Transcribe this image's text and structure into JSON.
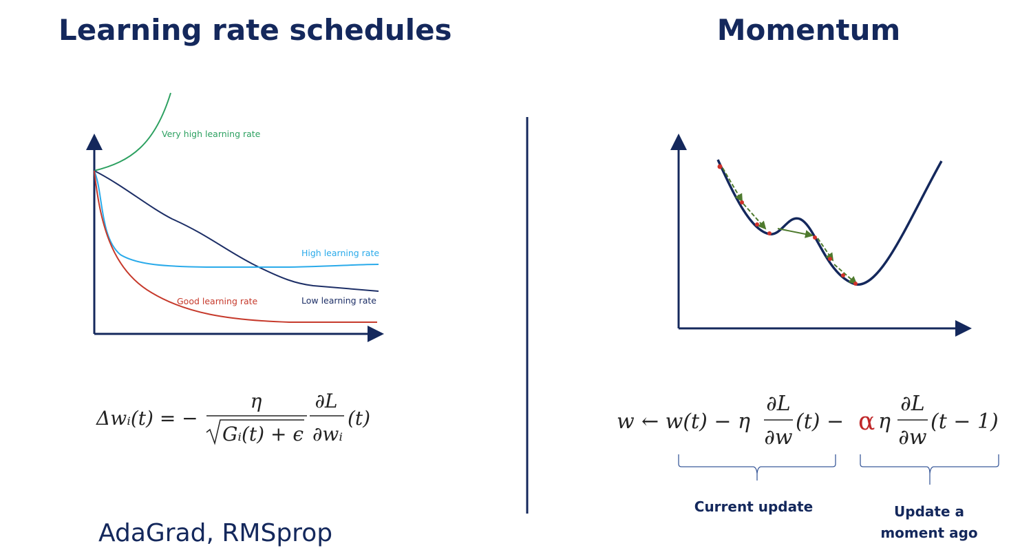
{
  "left": {
    "title": "Learning rate schedules",
    "curve_labels": {
      "very_high": "Very high learning rate",
      "high": "High learning rate",
      "good": "Good learning rate",
      "low": "Low learning rate"
    },
    "formula": {
      "lhs": "Δwᵢ(t) = −",
      "numerator": "η",
      "denominator": "Gᵢ(t) + ϵ",
      "grad_top": "∂L",
      "grad_bottom": "∂wᵢ",
      "tail": "(t)"
    },
    "methods": "AdaGrad, RMSprop"
  },
  "right": {
    "title": "Momentum",
    "formula": {
      "lhs": "w",
      "arrow_part": "← w(t) − η",
      "grad1_top": "∂L",
      "grad1_bottom": "∂w",
      "mid": "(t) −",
      "alpha": "α",
      "eta": "η",
      "grad2_top": "∂L",
      "grad2_bottom": "∂w",
      "tail": "(t − 1)"
    },
    "brace_labels": {
      "current": "Current update",
      "previous": "Update a moment ago"
    }
  }
}
